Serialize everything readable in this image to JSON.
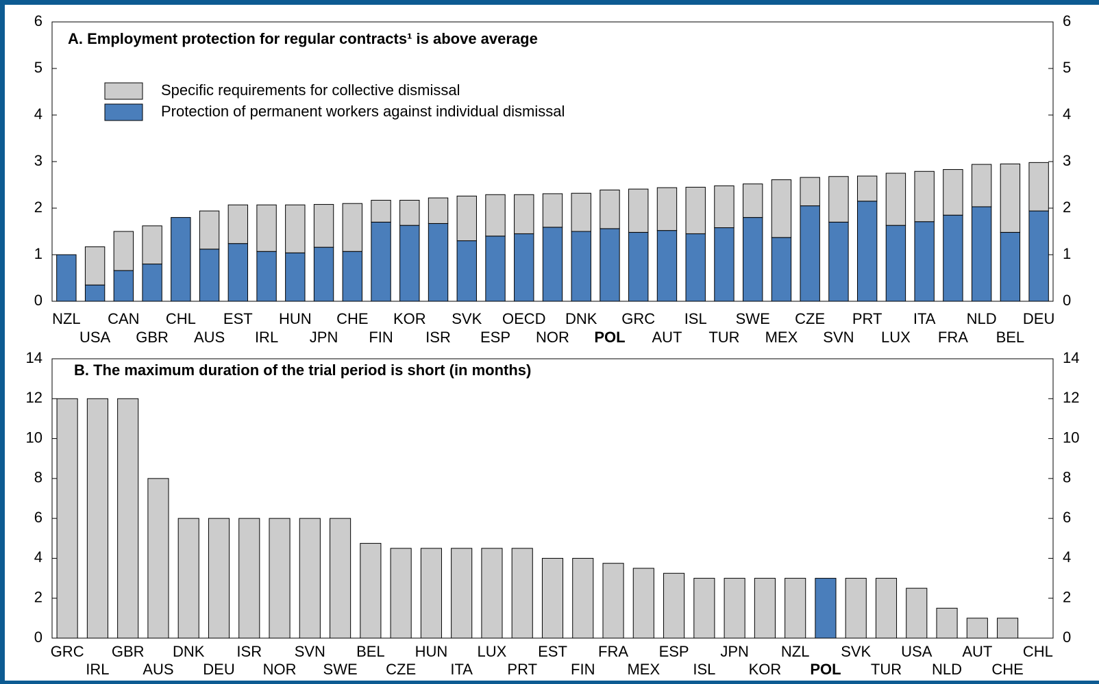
{
  "chart_data": [
    {
      "type": "stacked_bar",
      "title": "A. Employment protection for regular contracts¹ is above average",
      "categories": [
        "NZL",
        "USA",
        "CAN",
        "GBR",
        "CHL",
        "AUS",
        "EST",
        "IRL",
        "HUN",
        "JPN",
        "CHE",
        "FIN",
        "KOR",
        "ISR",
        "SVK",
        "ESP",
        "OECD",
        "NOR",
        "DNK",
        "POL",
        "GRC",
        "AUT",
        "ISL",
        "TUR",
        "SWE",
        "MEX",
        "CZE",
        "SVN",
        "PRT",
        "LUX",
        "ITA",
        "FRA",
        "NLD",
        "BEL",
        "DEU"
      ],
      "bold_category": "POL",
      "series": [
        {
          "name": "Protection of permanent workers against individual dismissal",
          "color": "#4a7ebb",
          "values": [
            1.0,
            0.35,
            0.66,
            0.8,
            1.8,
            1.12,
            1.24,
            1.07,
            1.04,
            1.16,
            1.07,
            1.7,
            1.63,
            1.67,
            1.3,
            1.4,
            1.45,
            1.59,
            1.5,
            1.56,
            1.48,
            1.52,
            1.45,
            1.58,
            1.8,
            1.37,
            2.05,
            1.7,
            2.15,
            1.63,
            1.71,
            1.85,
            2.03,
            1.48,
            1.94
          ]
        },
        {
          "name": "Specific requirements for collective dismissal",
          "color": "#cccccc",
          "values": [
            0,
            0.82,
            0.84,
            0.82,
            0,
            0.82,
            0.83,
            1.0,
            1.03,
            0.92,
            1.03,
            0.47,
            0.54,
            0.55,
            0.96,
            0.89,
            0.84,
            0.72,
            0.82,
            0.83,
            0.93,
            0.92,
            1.0,
            0.9,
            0.72,
            1.24,
            0.61,
            0.98,
            0.54,
            1.12,
            1.08,
            0.98,
            0.91,
            1.47,
            1.04
          ]
        }
      ],
      "legend": "upper left",
      "ylim": [
        0,
        6
      ],
      "yticks": [
        0,
        1,
        2,
        3,
        4,
        5,
        6
      ]
    },
    {
      "type": "bar",
      "title": "B. The maximum duration of the trial period is short (in months)",
      "categories": [
        "GRC",
        "IRL",
        "GBR",
        "AUS",
        "DNK",
        "DEU",
        "ISR",
        "NOR",
        "SVN",
        "SWE",
        "BEL",
        "CZE",
        "HUN",
        "ITA",
        "LUX",
        "PRT",
        "EST",
        "FIN",
        "FRA",
        "MEX",
        "ESP",
        "ISL",
        "JPN",
        "KOR",
        "NZL",
        "POL",
        "SVK",
        "TUR",
        "USA",
        "NLD",
        "AUT",
        "CHE",
        "CHL"
      ],
      "bold_category": "POL",
      "series": [
        {
          "values": [
            12,
            12,
            12,
            8,
            6,
            6,
            6,
            6,
            6,
            6,
            4.75,
            4.5,
            4.5,
            4.5,
            4.5,
            4.5,
            4,
            4,
            3.75,
            3.5,
            3.25,
            3,
            3,
            3,
            3,
            3,
            3,
            3,
            2.5,
            1.5,
            1,
            1,
            0
          ],
          "colors": [
            "#cccccc",
            "#cccccc",
            "#cccccc",
            "#cccccc",
            "#cccccc",
            "#cccccc",
            "#cccccc",
            "#cccccc",
            "#cccccc",
            "#cccccc",
            "#cccccc",
            "#cccccc",
            "#cccccc",
            "#cccccc",
            "#cccccc",
            "#cccccc",
            "#cccccc",
            "#cccccc",
            "#cccccc",
            "#cccccc",
            "#cccccc",
            "#cccccc",
            "#cccccc",
            "#cccccc",
            "#cccccc",
            "#4a7ebb",
            "#cccccc",
            "#cccccc",
            "#cccccc",
            "#cccccc",
            "#cccccc",
            "#cccccc",
            "#cccccc"
          ]
        }
      ],
      "ylim": [
        0,
        14
      ],
      "yticks": [
        0,
        2,
        4,
        6,
        8,
        10,
        12,
        14
      ]
    }
  ]
}
